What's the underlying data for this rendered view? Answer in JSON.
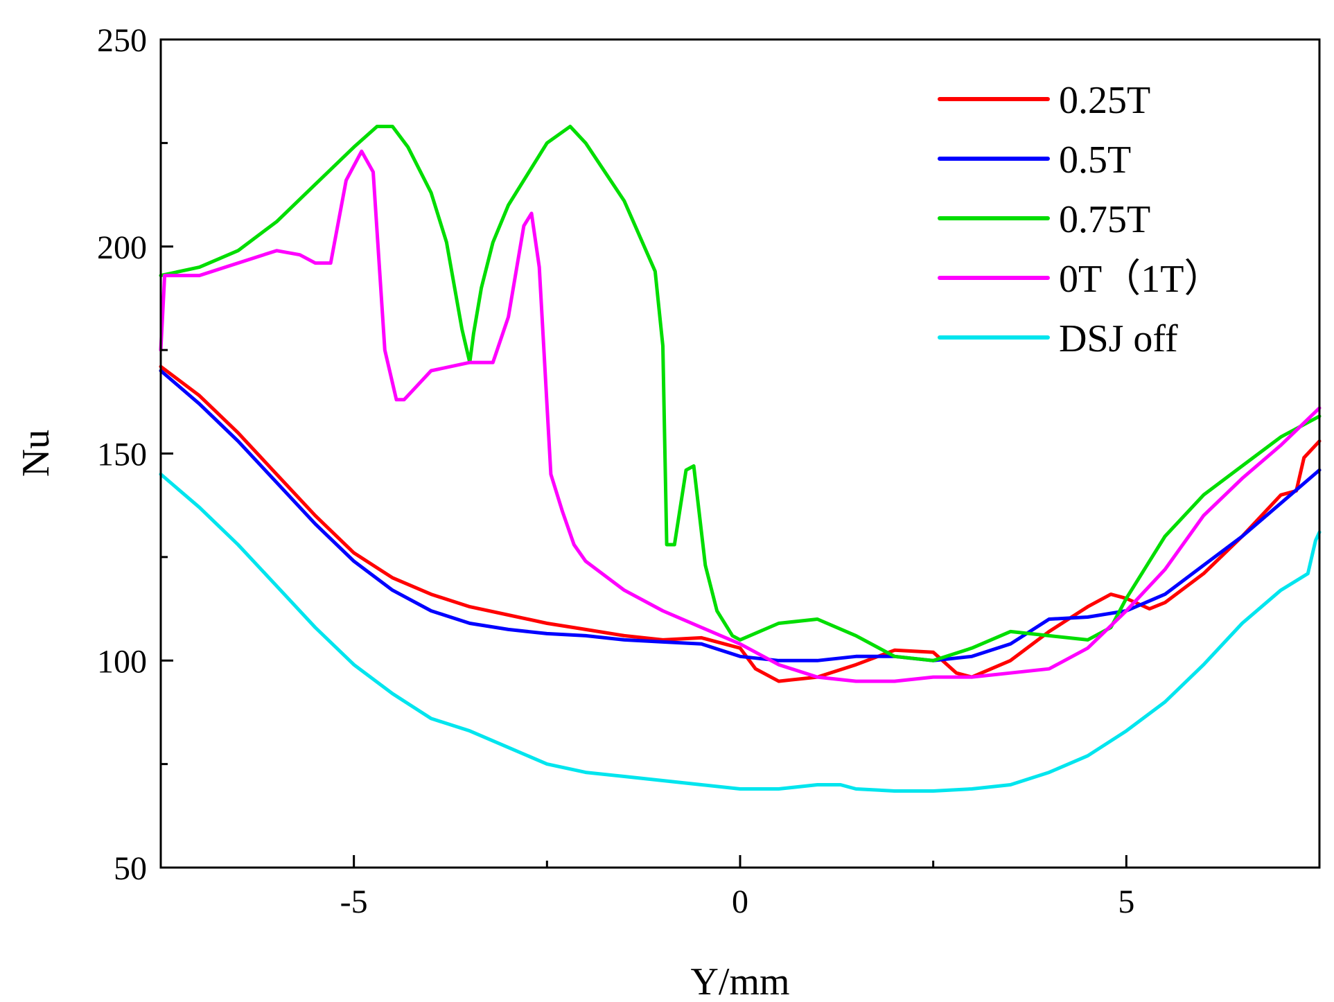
{
  "chart_data": {
    "type": "line",
    "title": "",
    "xlabel": "Y/mm",
    "ylabel": "Nu",
    "xlim": [
      -7.5,
      7.5
    ],
    "ylim": [
      50,
      250
    ],
    "x_ticks": [
      -5,
      0,
      5
    ],
    "x_tick_labels": [
      "-5",
      "0",
      "5"
    ],
    "y_ticks": [
      50,
      100,
      150,
      200,
      250
    ],
    "y_tick_labels": [
      "50",
      "100",
      "150",
      "200",
      "250"
    ],
    "grid": false,
    "legend_position": "top-right",
    "series": [
      {
        "name": "0.25T",
        "color": "#ff0000",
        "x": [
          -7.5,
          -7,
          -6.5,
          -6,
          -5.5,
          -5,
          -4.5,
          -4,
          -3.5,
          -3,
          -2.5,
          -2,
          -1.5,
          -1,
          -0.5,
          0,
          0.2,
          0.5,
          1,
          1.5,
          2,
          2.5,
          2.8,
          3,
          3.5,
          4,
          4.5,
          4.8,
          5,
          5.3,
          5.5,
          6,
          6.5,
          7,
          7.2,
          7.3,
          7.5
        ],
        "y": [
          171,
          164,
          155,
          145,
          135,
          126,
          120,
          116,
          113,
          111,
          109,
          107.5,
          106,
          105,
          105.5,
          103,
          98,
          95,
          96,
          99,
          102.5,
          102,
          97,
          96,
          100,
          107,
          113,
          116,
          115,
          112.5,
          114,
          121,
          130,
          140,
          141,
          149,
          153
        ]
      },
      {
        "name": "0.5T",
        "color": "#0000ff",
        "x": [
          -7.5,
          -7,
          -6.5,
          -6,
          -5.5,
          -5,
          -4.5,
          -4,
          -3.5,
          -3,
          -2.5,
          -2,
          -1.5,
          -1,
          -0.5,
          0,
          0.5,
          1,
          1.5,
          2,
          2.5,
          3,
          3.5,
          4,
          4.5,
          5,
          5.5,
          6,
          6.5,
          7,
          7.5
        ],
        "y": [
          170,
          162,
          153,
          143,
          133,
          124,
          117,
          112,
          109,
          107.5,
          106.5,
          106,
          105,
          104.5,
          104,
          101,
          100,
          100,
          101,
          101,
          100,
          101,
          104,
          110,
          110.5,
          112,
          116,
          123,
          130,
          138,
          146
        ]
      },
      {
        "name": "0.75T",
        "color": "#00dd00",
        "x": [
          -7.5,
          -7,
          -6.5,
          -6,
          -5.5,
          -5,
          -4.7,
          -4.5,
          -4.3,
          -4,
          -3.8,
          -3.6,
          -3.5,
          -3.45,
          -3.35,
          -3.2,
          -3,
          -2.5,
          -2.2,
          -2,
          -1.5,
          -1.1,
          -1,
          -0.95,
          -0.85,
          -0.7,
          -0.6,
          -0.45,
          -0.3,
          -0.1,
          0,
          0.5,
          1,
          1.5,
          2,
          2.5,
          3,
          3.5,
          4,
          4.5,
          4.8,
          5,
          5.5,
          6,
          6.5,
          7,
          7.5
        ],
        "y": [
          193,
          195,
          199,
          206,
          215,
          224,
          229,
          229,
          224,
          213,
          201,
          180,
          172,
          179,
          190,
          201,
          210,
          225,
          229,
          225,
          211,
          194,
          176,
          128,
          128,
          146,
          147,
          123,
          112,
          106,
          105,
          109,
          110,
          106,
          101,
          100,
          103,
          107,
          106,
          105,
          108,
          115,
          130,
          140,
          147,
          154,
          159
        ]
      },
      {
        "name": "0T（1T）",
        "color": "#ff00ff",
        "x": [
          -7.5,
          -7.45,
          -7,
          -6.5,
          -6,
          -5.7,
          -5.5,
          -5.3,
          -5.1,
          -4.9,
          -4.75,
          -4.6,
          -4.45,
          -4.35,
          -4.2,
          -4,
          -3.5,
          -3.2,
          -3,
          -2.8,
          -2.7,
          -2.6,
          -2.45,
          -2.3,
          -2.15,
          -2,
          -1.5,
          -1,
          -0.5,
          0,
          0.5,
          1,
          1.5,
          2,
          2.5,
          3,
          3.5,
          4,
          4.5,
          5,
          5.5,
          6,
          6.5,
          7,
          7.5
        ],
        "y": [
          175,
          193,
          193,
          196,
          199,
          198,
          196,
          196,
          216,
          223,
          218,
          175,
          163,
          163,
          166,
          170,
          172,
          172,
          183,
          205,
          208,
          195,
          145,
          136,
          128,
          124,
          117,
          112,
          108,
          104,
          99,
          96,
          95,
          95,
          96,
          96,
          97,
          98,
          103,
          112,
          122,
          135,
          144,
          152,
          161
        ]
      },
      {
        "name": "DSJ off",
        "color": "#00e5ee",
        "x": [
          -7.5,
          -7,
          -6.5,
          -6,
          -5.5,
          -5,
          -4.5,
          -4,
          -3.5,
          -3,
          -2.5,
          -2,
          -1.5,
          -1,
          -0.5,
          0,
          0.5,
          1,
          1.3,
          1.5,
          2,
          2.5,
          3,
          3.5,
          4,
          4.5,
          5,
          5.5,
          6,
          6.5,
          7,
          7.35,
          7.45,
          7.5
        ],
        "y": [
          145,
          137,
          128,
          118,
          108,
          99,
          92,
          86,
          83,
          79,
          75,
          73,
          72,
          71,
          70,
          69,
          69,
          70,
          70,
          69,
          68.5,
          68.5,
          69,
          70,
          73,
          77,
          83,
          90,
          99,
          109,
          117,
          121,
          129,
          131
        ]
      }
    ]
  }
}
